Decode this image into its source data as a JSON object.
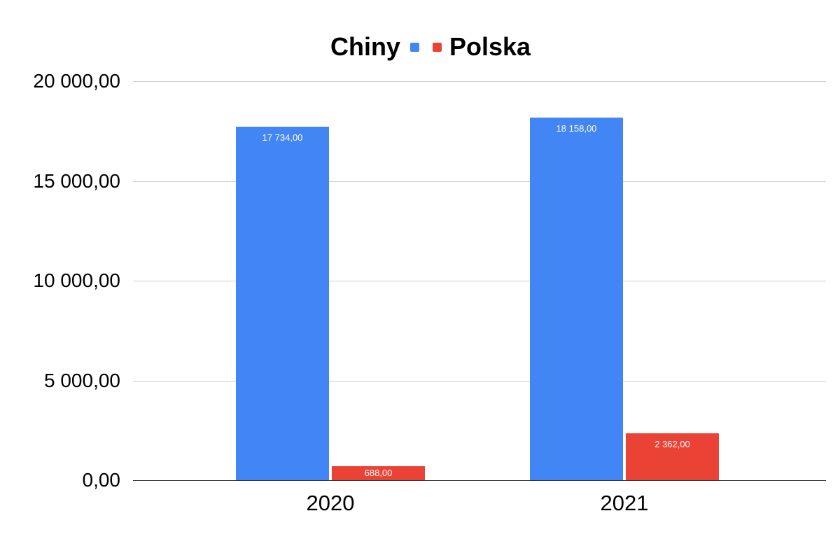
{
  "chart_data": {
    "type": "bar",
    "title": "",
    "legend_position": "top",
    "grid": true,
    "categories": [
      "2020",
      "2021"
    ],
    "series": [
      {
        "name": "Chiny",
        "color": "#4285F4",
        "values": [
          17734,
          18158
        ],
        "labels": [
          "17 734,00",
          "18 158,00"
        ]
      },
      {
        "name": "Polska",
        "color": "#EA4335",
        "values": [
          688,
          2362
        ],
        "labels": [
          "688,00",
          "2 362,00"
        ]
      }
    ],
    "y_axis": {
      "min": 0,
      "max": 20000,
      "tick_values": [
        20000,
        15000,
        10000,
        5000,
        0
      ],
      "ticks": [
        "20 000,00",
        "15 000,00",
        "10 000,00",
        "5 000,00",
        "0,00"
      ]
    },
    "bar_label_color": "#ffffff",
    "gridline_color": "#cccccc",
    "baseline_color": "#333333",
    "text_color": "#000000"
  }
}
